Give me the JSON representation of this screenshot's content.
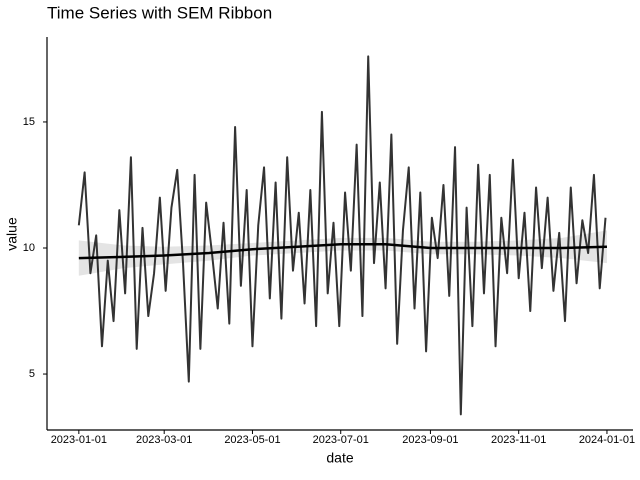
{
  "chart_data": {
    "type": "line",
    "title": "Time Series with SEM Ribbon",
    "x_label": "date",
    "y_label": "value",
    "xlim": [
      "2022-12-10",
      "2024-01-19"
    ],
    "ylim": [
      2.78,
      18.37
    ],
    "xticks": [
      "2023-01-01",
      "2023-03-01",
      "2023-05-01",
      "2023-07-01",
      "2023-09-01",
      "2023-11-01",
      "2024-01-01"
    ],
    "yticks": [
      5,
      10,
      15
    ],
    "series": [
      {
        "color": "#333333",
        "x": [
          "2023-01-01",
          "2023-01-05",
          "2023-01-09",
          "2023-01-13",
          "2023-01-17",
          "2023-01-21",
          "2023-01-25",
          "2023-01-29",
          "2023-02-02",
          "2023-02-06",
          "2023-02-10",
          "2023-02-14",
          "2023-02-18",
          "2023-02-22",
          "2023-02-26",
          "2023-03-02",
          "2023-03-06",
          "2023-03-10",
          "2023-03-14",
          "2023-03-18",
          "2023-03-22",
          "2023-03-26",
          "2023-03-30",
          "2023-04-03",
          "2023-04-07",
          "2023-04-11",
          "2023-04-15",
          "2023-04-19",
          "2023-04-23",
          "2023-04-27",
          "2023-05-01",
          "2023-05-05",
          "2023-05-09",
          "2023-05-13",
          "2023-05-17",
          "2023-05-21",
          "2023-05-25",
          "2023-05-29",
          "2023-06-02",
          "2023-06-06",
          "2023-06-10",
          "2023-06-14",
          "2023-06-18",
          "2023-06-22",
          "2023-06-26",
          "2023-06-30",
          "2023-07-04",
          "2023-07-08",
          "2023-07-12",
          "2023-07-16",
          "2023-07-20",
          "2023-07-24",
          "2023-07-28",
          "2023-08-01",
          "2023-08-05",
          "2023-08-09",
          "2023-08-13",
          "2023-08-17",
          "2023-08-21",
          "2023-08-25",
          "2023-08-29",
          "2023-09-02",
          "2023-09-06",
          "2023-09-10",
          "2023-09-14",
          "2023-09-18",
          "2023-09-22",
          "2023-09-26",
          "2023-09-30",
          "2023-10-04",
          "2023-10-08",
          "2023-10-12",
          "2023-10-16",
          "2023-10-20",
          "2023-10-24",
          "2023-10-28",
          "2023-11-01",
          "2023-11-05",
          "2023-11-09",
          "2023-11-13",
          "2023-11-17",
          "2023-11-21",
          "2023-11-25",
          "2023-11-29",
          "2023-12-03",
          "2023-12-07",
          "2023-12-11",
          "2023-12-15",
          "2023-12-19",
          "2023-12-23",
          "2023-12-27",
          "2023-12-31"
        ],
        "values": [
          10.9,
          13.0,
          9.0,
          10.5,
          6.1,
          9.5,
          7.1,
          11.5,
          8.2,
          13.6,
          6.0,
          10.8,
          7.3,
          9.0,
          12.0,
          8.3,
          11.6,
          13.1,
          9.4,
          4.7,
          12.9,
          6.0,
          11.8,
          9.8,
          7.6,
          11.0,
          7.0,
          14.8,
          8.5,
          12.3,
          6.1,
          10.9,
          13.2,
          8.0,
          12.6,
          7.2,
          13.6,
          9.1,
          11.4,
          7.8,
          12.3,
          6.9,
          15.4,
          8.2,
          11.0,
          6.9,
          12.2,
          9.1,
          14.1,
          7.3,
          17.6,
          9.4,
          12.6,
          8.4,
          14.5,
          6.2,
          10.7,
          13.2,
          7.6,
          12.2,
          5.9,
          11.2,
          9.6,
          12.5,
          8.1,
          14.0,
          3.4,
          11.6,
          6.9,
          13.3,
          8.2,
          12.9,
          6.1,
          11.2,
          9.0,
          13.5,
          8.8,
          11.4,
          7.5,
          12.4,
          9.2,
          12.0,
          8.3,
          10.6,
          7.1,
          12.4,
          8.6,
          11.1,
          9.8,
          12.9,
          8.4,
          11.2
        ]
      },
      {
        "color": "#000000",
        "x": [
          "2023-01-01",
          "2023-02-01",
          "2023-03-01",
          "2023-04-01",
          "2023-05-01",
          "2023-06-01",
          "2023-07-01",
          "2023-08-01",
          "2023-09-01",
          "2023-10-01",
          "2023-11-01",
          "2023-12-01",
          "2024-01-01"
        ],
        "values": [
          9.6,
          9.65,
          9.7,
          9.8,
          9.95,
          10.05,
          10.15,
          10.15,
          10.0,
          10.0,
          10.0,
          10.0,
          10.05
        ],
        "lower": [
          8.9,
          9.2,
          9.35,
          9.5,
          9.7,
          9.8,
          9.9,
          9.9,
          9.75,
          9.75,
          9.7,
          9.6,
          9.4
        ],
        "upper": [
          10.3,
          10.1,
          10.05,
          10.1,
          10.2,
          10.3,
          10.4,
          10.4,
          10.25,
          10.25,
          10.3,
          10.4,
          10.7
        ],
        "ribbon_color": "#d9d9d9"
      }
    ]
  }
}
